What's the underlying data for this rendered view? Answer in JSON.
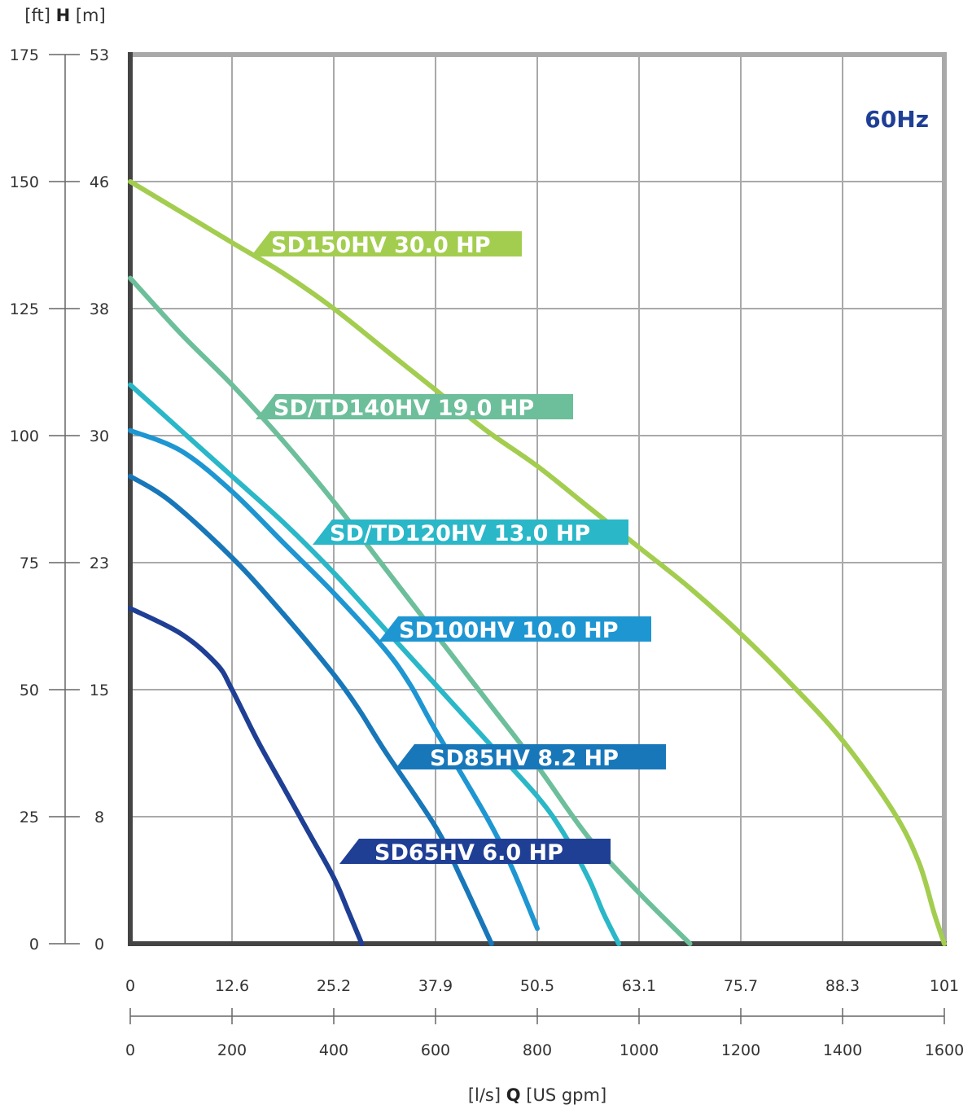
{
  "chart_data": {
    "type": "line",
    "frequency": "60Hz",
    "y_label": {
      "left_unit": "[ft]",
      "symbol": "H",
      "right_unit": "[m]"
    },
    "x_label": {
      "left_unit": "[l/s]",
      "symbol": "Q",
      "right_unit": "[US gpm]"
    },
    "xlim_gpm": [
      0,
      1600
    ],
    "ylim_ft": [
      0,
      175
    ],
    "y_ticks_ft": [
      "175",
      "150",
      "125",
      "100",
      "75",
      "50",
      "25",
      "0"
    ],
    "y_ticks_m": [
      "53",
      "46",
      "38",
      "30",
      "23",
      "15",
      "8",
      "0"
    ],
    "x_ticks_ls": [
      "0",
      "12.6",
      "25.2",
      "37.9",
      "50.5",
      "63.1",
      "75.7",
      "88.3",
      "101"
    ],
    "x_ticks_gpm": [
      "0",
      "200",
      "400",
      "600",
      "800",
      "1000",
      "1200",
      "1400",
      "1600"
    ],
    "grid": true,
    "series": [
      {
        "name": "SD150HV 30.0 HP",
        "color": "#a3cd4f",
        "points": [
          [
            0,
            150
          ],
          [
            100,
            144
          ],
          [
            200,
            138
          ],
          [
            300,
            132
          ],
          [
            400,
            125
          ],
          [
            500,
            117
          ],
          [
            600,
            109
          ],
          [
            700,
            101
          ],
          [
            800,
            94
          ],
          [
            900,
            86
          ],
          [
            1000,
            78
          ],
          [
            1100,
            70
          ],
          [
            1200,
            61
          ],
          [
            1300,
            51
          ],
          [
            1400,
            40
          ],
          [
            1500,
            26
          ],
          [
            1550,
            16
          ],
          [
            1580,
            6
          ],
          [
            1600,
            0
          ]
        ]
      },
      {
        "name": "SD/TD140HV 19.0 HP",
        "color": "#6cbf9a",
        "points": [
          [
            0,
            131
          ],
          [
            100,
            120
          ],
          [
            200,
            110
          ],
          [
            300,
            99
          ],
          [
            400,
            87
          ],
          [
            500,
            74
          ],
          [
            600,
            61
          ],
          [
            700,
            48
          ],
          [
            800,
            35
          ],
          [
            900,
            21
          ],
          [
            1000,
            10
          ],
          [
            1100,
            0
          ]
        ]
      },
      {
        "name": "SD/TD120HV 13.0 HP",
        "color": "#2ab7c8",
        "points": [
          [
            0,
            110
          ],
          [
            100,
            101
          ],
          [
            200,
            92
          ],
          [
            300,
            83
          ],
          [
            400,
            73
          ],
          [
            500,
            62
          ],
          [
            600,
            51
          ],
          [
            700,
            40
          ],
          [
            800,
            29
          ],
          [
            850,
            22
          ],
          [
            900,
            13
          ],
          [
            930,
            6
          ],
          [
            960,
            0
          ]
        ]
      },
      {
        "name": "SD100HV 10.0 HP",
        "color": "#1e96d2",
        "points": [
          [
            0,
            101
          ],
          [
            100,
            97
          ],
          [
            200,
            89
          ],
          [
            300,
            79
          ],
          [
            400,
            69
          ],
          [
            500,
            58
          ],
          [
            550,
            51
          ],
          [
            600,
            42
          ],
          [
            700,
            25
          ],
          [
            750,
            15
          ],
          [
            800,
            3
          ]
        ]
      },
      {
        "name": "SD85HV 8.2 HP",
        "color": "#1877b9",
        "points": [
          [
            0,
            92
          ],
          [
            80,
            87
          ],
          [
            200,
            76
          ],
          [
            300,
            65
          ],
          [
            400,
            53
          ],
          [
            450,
            46
          ],
          [
            500,
            38
          ],
          [
            600,
            23
          ],
          [
            650,
            13
          ],
          [
            710,
            0
          ]
        ]
      },
      {
        "name": "SD65HV 6.0 HP",
        "color": "#1f3f95",
        "points": [
          [
            0,
            66
          ],
          [
            100,
            61
          ],
          [
            170,
            55
          ],
          [
            200,
            50
          ],
          [
            250,
            40
          ],
          [
            300,
            31
          ],
          [
            350,
            22
          ],
          [
            400,
            13
          ],
          [
            430,
            6
          ],
          [
            455,
            0
          ]
        ]
      }
    ]
  }
}
